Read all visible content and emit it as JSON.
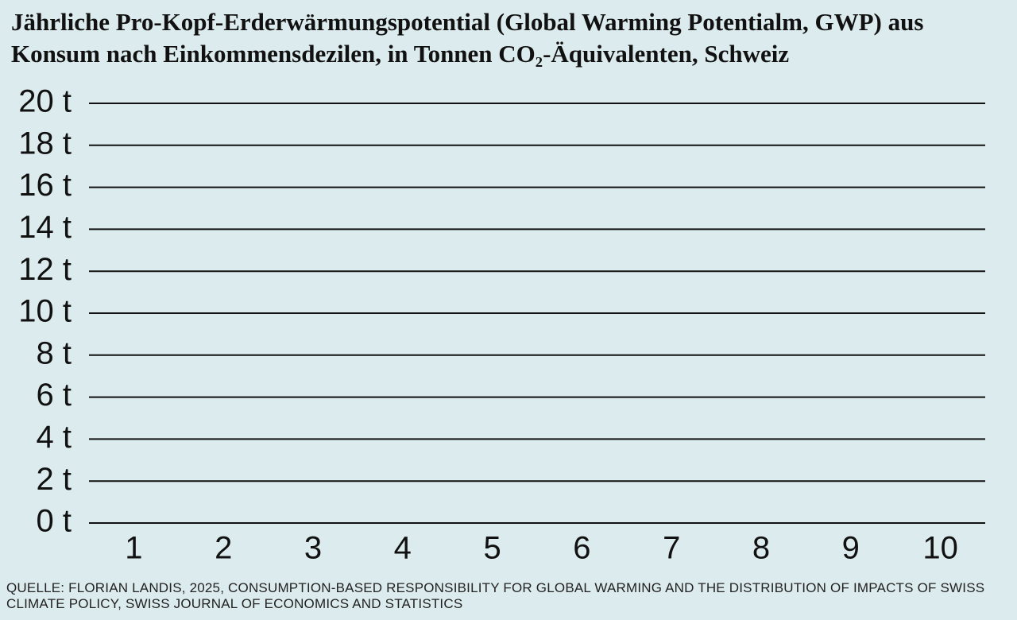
{
  "chart_data": {
    "type": "bar",
    "title": "Jährliche Pro-Kopf-Erderwärmungspotential (Global Warming Potentialm, GWP) aus Konsum nach Einkommensdezilen, in Tonnen CO₂-Äquivalenten, Schweiz",
    "categories": [
      "1",
      "2",
      "3",
      "4",
      "5",
      "6",
      "7",
      "8",
      "9",
      "10"
    ],
    "ylim": [
      0,
      20
    ],
    "yticks": [
      {
        "value": 0,
        "label": "0 t"
      },
      {
        "value": 2,
        "label": "2 t"
      },
      {
        "value": 4,
        "label": "4 t"
      },
      {
        "value": 6,
        "label": "6 t"
      },
      {
        "value": 8,
        "label": "8 t"
      },
      {
        "value": 10,
        "label": "10 t"
      },
      {
        "value": 12,
        "label": "12 t"
      },
      {
        "value": 14,
        "label": "14 t"
      },
      {
        "value": 16,
        "label": "16 t"
      },
      {
        "value": 18,
        "label": "18 t"
      },
      {
        "value": 20,
        "label": "20 t"
      }
    ],
    "grid": true,
    "source": "QUELLE: FLORIAN LANDIS, 2025, CONSUMPTION-BASED RESPONSIBILITY FOR GLOBAL WARMING AND THE DISTRIBUTION OF IMPACTS OF SWISS CLIMATE POLICY, SWISS JOURNAL OF ECONOMICS AND STATISTICS"
  }
}
